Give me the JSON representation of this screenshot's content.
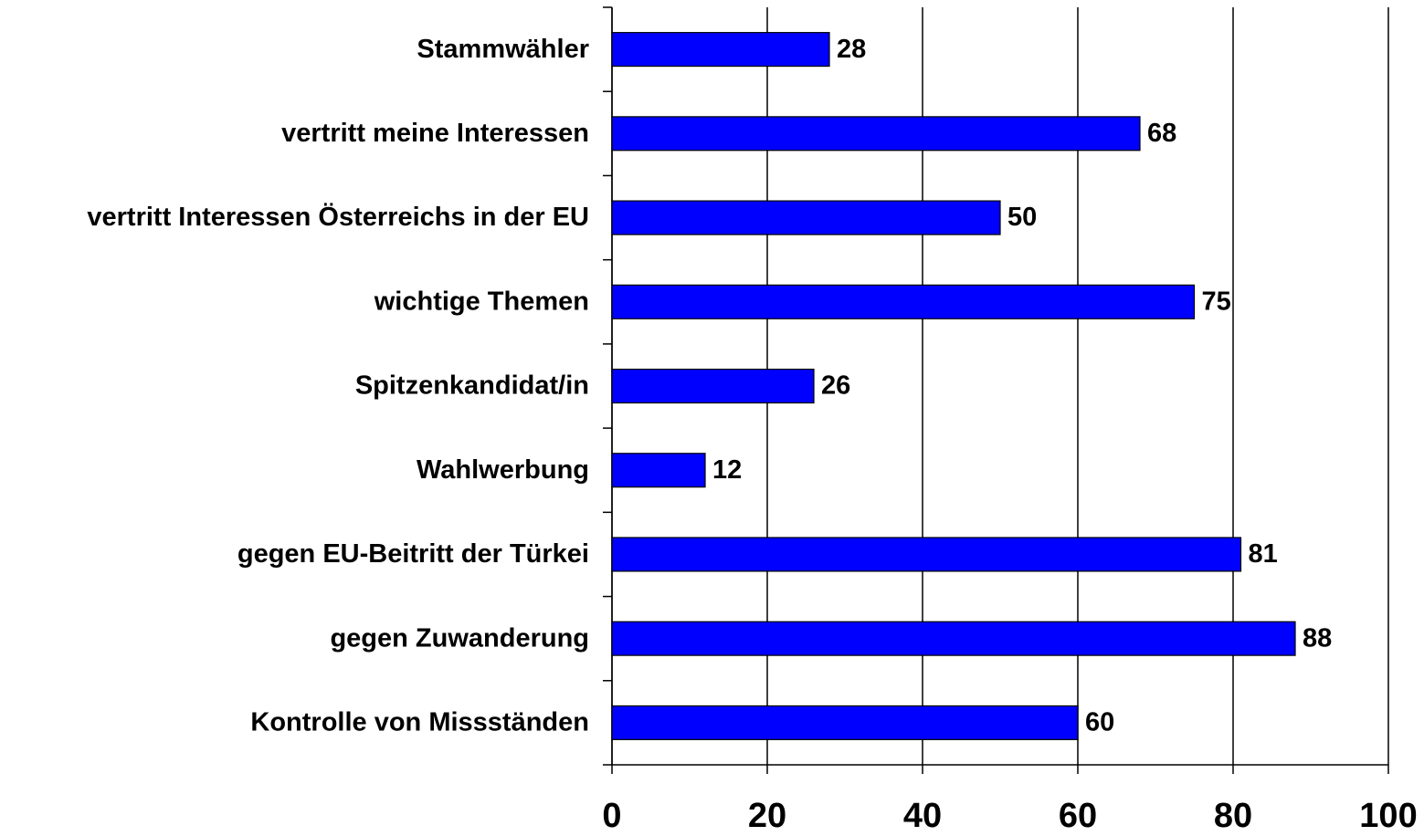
{
  "chart_data": {
    "type": "bar",
    "orientation": "horizontal",
    "categories": [
      "Stammwähler",
      "vertritt meine Interessen",
      "vertritt Interessen Österreichs in der EU",
      "wichtige Themen",
      "Spitzenkandidat/in",
      "Wahlwerbung",
      "gegen EU-Beitritt der Türkei",
      "gegen Zuwanderung",
      "Kontrolle von Missständen"
    ],
    "values": [
      28,
      68,
      50,
      75,
      26,
      12,
      81,
      88,
      60
    ],
    "color": "#0000ff",
    "xlim": [
      0,
      100
    ],
    "xticks": [
      0,
      20,
      40,
      60,
      80,
      100
    ],
    "grid": true
  }
}
